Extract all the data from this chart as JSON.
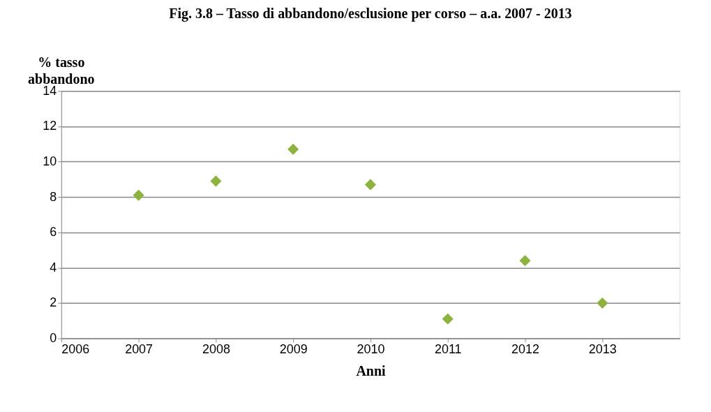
{
  "chart_data": {
    "type": "scatter",
    "title": "Fig. 3.8 – Tasso di abbandono/esclusione per corso – a.a. 2007 - 2013",
    "xlabel": "Anni",
    "ylabel": "% tasso abbandono",
    "x": [
      2007,
      2008,
      2009,
      2010,
      2011,
      2012,
      2013
    ],
    "series": [
      {
        "color": "#8db33f",
        "values": [
          8.1,
          8.9,
          10.7,
          8.7,
          1.1,
          4.4,
          2.0
        ]
      }
    ],
    "xlim": [
      2006,
      2014
    ],
    "xticks": [
      2006,
      2007,
      2008,
      2009,
      2010,
      2011,
      2012,
      2013
    ],
    "ylim": [
      0,
      14
    ],
    "yticks": [
      0,
      2,
      4,
      6,
      8,
      10,
      12,
      14
    ],
    "grid": "y",
    "marker": "diamond"
  }
}
